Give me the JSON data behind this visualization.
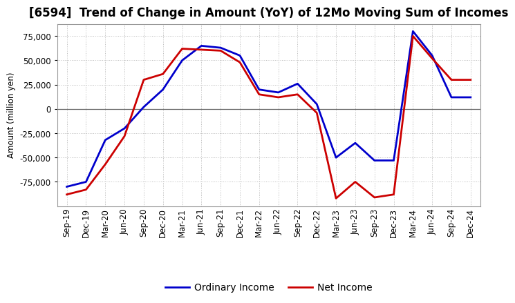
{
  "title": "[6594]  Trend of Change in Amount (YoY) of 12Mo Moving Sum of Incomes",
  "ylabel": "Amount (million yen)",
  "x_labels": [
    "Sep-19",
    "Dec-19",
    "Mar-20",
    "Jun-20",
    "Sep-20",
    "Dec-20",
    "Mar-21",
    "Jun-21",
    "Sep-21",
    "Dec-21",
    "Mar-22",
    "Jun-22",
    "Sep-22",
    "Dec-22",
    "Mar-23",
    "Jun-23",
    "Sep-23",
    "Dec-23",
    "Mar-24",
    "Jun-24",
    "Sep-24",
    "Dec-24"
  ],
  "ordinary_income": [
    -80000,
    -75000,
    -32000,
    -20000,
    2000,
    20000,
    50000,
    65000,
    63000,
    55000,
    20000,
    17000,
    26000,
    5000,
    -50000,
    -35000,
    -53000,
    -53000,
    80000,
    55000,
    12000,
    12000
  ],
  "net_income": [
    -88000,
    -83000,
    -57000,
    -28000,
    30000,
    36000,
    62000,
    61000,
    60000,
    48000,
    15000,
    12000,
    15000,
    -4000,
    -92000,
    -75000,
    -91000,
    -88000,
    75000,
    52000,
    30000,
    30000
  ],
  "ordinary_income_color": "#0000cc",
  "net_income_color": "#cc0000",
  "ylim": [
    -100000,
    87500
  ],
  "yticks": [
    -75000,
    -50000,
    -25000,
    0,
    25000,
    50000,
    75000
  ],
  "background_color": "#ffffff",
  "grid_color": "#bbbbbb",
  "title_fontsize": 12,
  "axis_fontsize": 8.5,
  "legend_fontsize": 10,
  "line_width": 2.0
}
